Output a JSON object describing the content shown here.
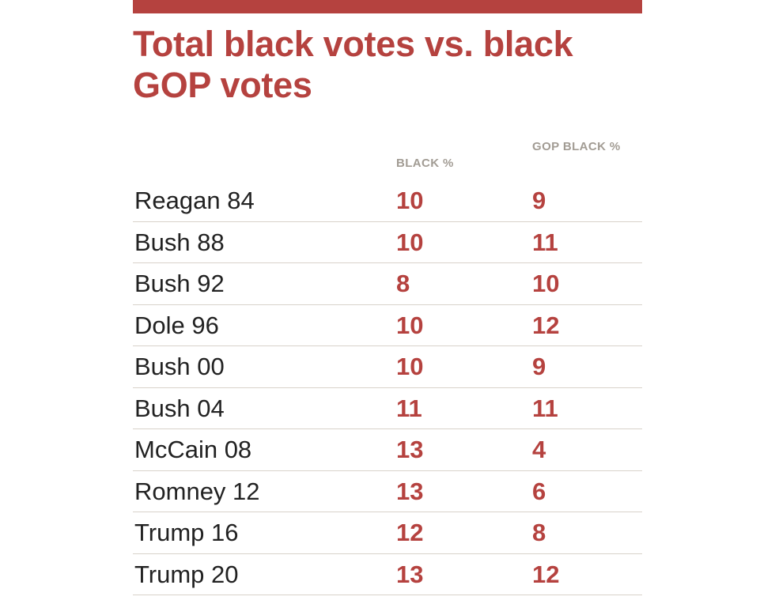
{
  "title": "Total black votes vs. black GOP votes",
  "columns": {
    "label": "",
    "black_pct": "BLACK %",
    "gop_black_pct": "GOP BLACK %"
  },
  "colors": {
    "accent": "#b5423f",
    "header_gray": "#a29c94",
    "text": "#222222",
    "divider": "#d8d2ca"
  },
  "chart_data": {
    "type": "table",
    "title": "Total black votes vs. black GOP votes",
    "columns": [
      "",
      "BLACK %",
      "GOP BLACK %"
    ],
    "rows": [
      {
        "label": "Reagan 84",
        "black_pct": "10",
        "gop_black_pct": "9"
      },
      {
        "label": "Bush 88",
        "black_pct": "10",
        "gop_black_pct": "11"
      },
      {
        "label": "Bush 92",
        "black_pct": "8",
        "gop_black_pct": "10"
      },
      {
        "label": "Dole 96",
        "black_pct": "10",
        "gop_black_pct": "12"
      },
      {
        "label": "Bush 00",
        "black_pct": "10",
        "gop_black_pct": "9"
      },
      {
        "label": "Bush 04",
        "black_pct": "11",
        "gop_black_pct": "11"
      },
      {
        "label": "McCain 08",
        "black_pct": "13",
        "gop_black_pct": "4"
      },
      {
        "label": "Romney 12",
        "black_pct": "13",
        "gop_black_pct": "6"
      },
      {
        "label": "Trump 16",
        "black_pct": "12",
        "gop_black_pct": "8"
      },
      {
        "label": "Trump 20",
        "black_pct": "13",
        "gop_black_pct": "12"
      }
    ]
  }
}
